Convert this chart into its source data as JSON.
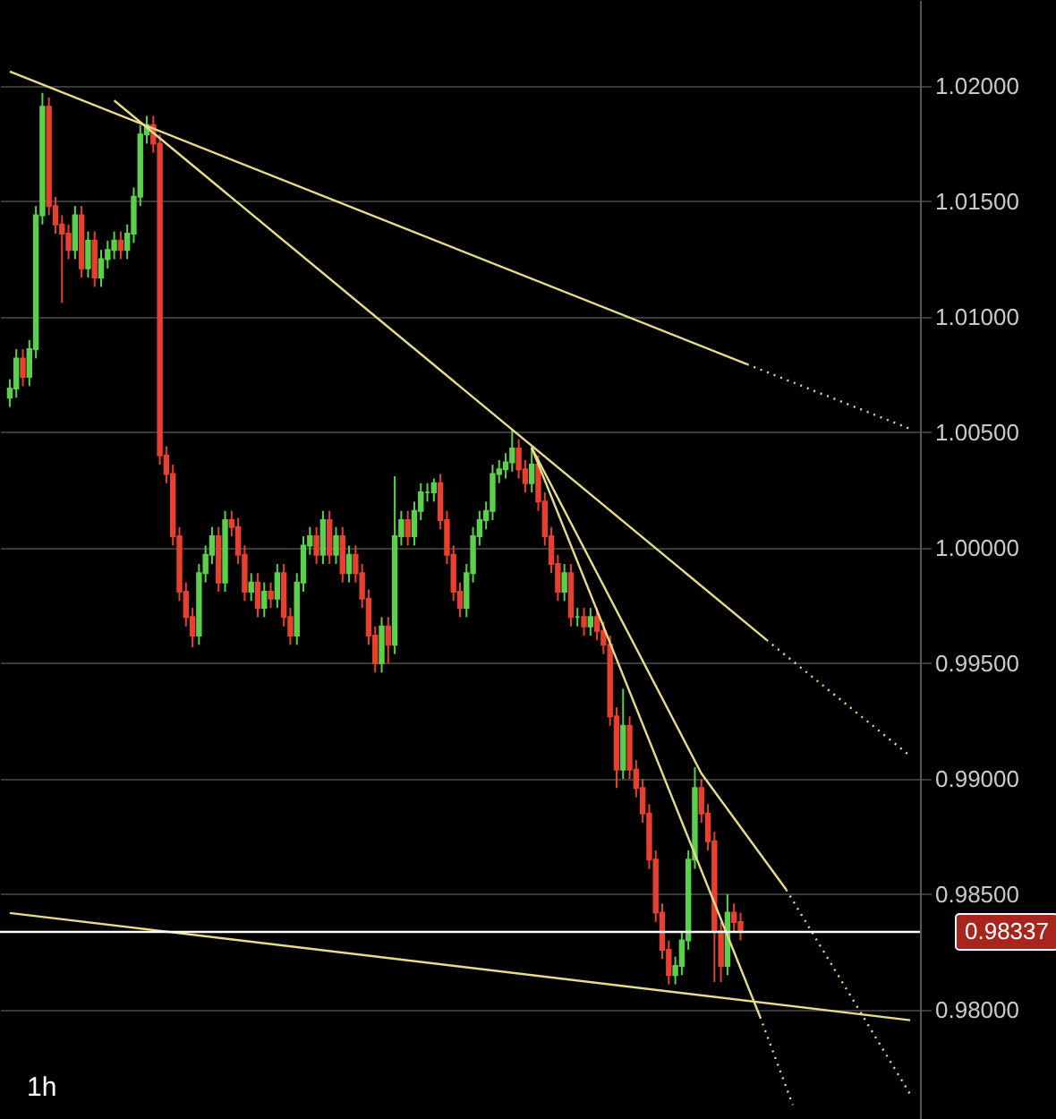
{
  "chart_data": {
    "type": "candlestick",
    "categories": [
      null,
      null,
      null,
      null,
      null,
      null,
      null,
      null,
      null,
      null,
      null,
      null,
      null,
      null,
      null,
      null,
      null,
      null,
      null,
      null,
      null,
      null,
      null,
      null,
      null,
      null,
      null,
      null,
      null,
      null,
      null,
      null,
      null,
      null,
      null,
      null,
      null,
      null,
      null,
      null,
      null,
      null,
      null,
      null,
      null,
      null,
      null,
      null,
      null,
      null,
      null,
      null,
      null,
      null,
      null,
      null,
      null,
      null,
      null,
      null,
      null,
      null,
      null,
      null,
      null,
      null,
      null,
      null,
      null,
      null,
      null,
      null,
      null,
      null,
      null,
      null,
      null,
      null,
      null,
      null,
      null,
      null,
      null,
      null,
      null,
      null,
      null,
      null,
      null,
      null,
      null,
      null,
      null,
      null,
      null,
      null,
      null,
      null,
      null,
      null,
      null,
      null,
      null,
      null,
      null,
      null,
      null,
      null,
      null,
      null,
      null,
      null,
      null,
      null,
      null,
      null,
      null,
      null,
      null,
      null,
      null,
      null,
      null,
      null,
      null,
      null,
      null,
      null,
      null,
      null,
      null,
      null,
      null,
      null,
      null,
      null,
      null,
      null,
      null
    ],
    "ohlc": [
      [
        1.0065,
        1.0073,
        1.0061,
        1.0069
      ],
      [
        1.0069,
        1.0086,
        1.0065,
        1.0082
      ],
      [
        1.0082,
        1.0086,
        1.007,
        1.0074
      ],
      [
        1.0074,
        1.009,
        1.007,
        1.0086
      ],
      [
        1.0086,
        1.0148,
        1.0082,
        1.0144
      ],
      [
        1.0144,
        1.0197,
        1.014,
        1.0191
      ],
      [
        1.0191,
        1.0195,
        1.0144,
        1.0148
      ],
      [
        1.0148,
        1.0152,
        1.0136,
        1.014
      ],
      [
        1.014,
        1.0144,
        1.0106,
        1.0136
      ],
      [
        1.0136,
        1.014,
        1.0125,
        1.0129
      ],
      [
        1.0129,
        1.0148,
        1.0125,
        1.0144
      ],
      [
        1.0144,
        1.0148,
        1.0117,
        1.0121
      ],
      [
        1.0121,
        1.0137,
        1.0117,
        1.0133
      ],
      [
        1.0133,
        1.0137,
        1.0113,
        1.0117
      ],
      [
        1.0117,
        1.0129,
        1.0113,
        1.0125
      ],
      [
        1.0125,
        1.0133,
        1.0121,
        1.0129
      ],
      [
        1.0129,
        1.0137,
        1.0125,
        1.0133
      ],
      [
        1.0133,
        1.0137,
        1.0125,
        1.0129
      ],
      [
        1.0129,
        1.014,
        1.0125,
        1.0136
      ],
      [
        1.0136,
        1.0156,
        1.0132,
        1.0152
      ],
      [
        1.0152,
        1.0183,
        1.0148,
        1.0179
      ],
      [
        1.0179,
        1.0187,
        1.0175,
        1.0183
      ],
      [
        1.0183,
        1.0187,
        1.0171,
        1.0175
      ],
      [
        1.0175,
        1.0179,
        1.0036,
        1.004
      ],
      [
        1.004,
        1.0044,
        1.0028,
        1.0032
      ],
      [
        1.0032,
        1.0036,
        1.0001,
        1.0005
      ],
      [
        1.0005,
        1.0009,
        0.9977,
        0.9981
      ],
      [
        0.9981,
        0.9985,
        0.9966,
        0.997
      ],
      [
        0.997,
        0.9974,
        0.9957,
        0.9962
      ],
      [
        0.9962,
        0.9993,
        0.9958,
        0.9989
      ],
      [
        0.9989,
        1.0001,
        0.9985,
        0.9997
      ],
      [
        0.9997,
        1.0009,
        0.9993,
        1.0005
      ],
      [
        1.0005,
        1.0009,
        0.9981,
        0.9985
      ],
      [
        0.9985,
        1.0016,
        0.9981,
        1.0012
      ],
      [
        1.0012,
        1.0016,
        1.0005,
        1.0009
      ],
      [
        1.0009,
        1.0013,
        0.9993,
        0.9997
      ],
      [
        0.9997,
        1.0001,
        0.9977,
        0.9981
      ],
      [
        0.9981,
        0.9989,
        0.9977,
        0.9985
      ],
      [
        0.9985,
        0.9989,
        0.997,
        0.9974
      ],
      [
        0.9974,
        0.9985,
        0.997,
        0.9981
      ],
      [
        0.9981,
        0.9985,
        0.9974,
        0.9978
      ],
      [
        0.9978,
        0.9993,
        0.9974,
        0.9989
      ],
      [
        0.9989,
        0.9993,
        0.9966,
        0.997
      ],
      [
        0.997,
        0.9974,
        0.9958,
        0.9962
      ],
      [
        0.9962,
        0.9989,
        0.9958,
        0.9985
      ],
      [
        0.9985,
        1.0005,
        0.9981,
        1.0001
      ],
      [
        1.0001,
        1.0009,
        0.9997,
        1.0005
      ],
      [
        1.0005,
        1.0009,
        0.9993,
        0.9997
      ],
      [
        0.9997,
        1.0016,
        0.9993,
        1.0012
      ],
      [
        1.0012,
        1.0016,
        0.9993,
        0.9997
      ],
      [
        0.9997,
        1.0009,
        0.9993,
        1.0005
      ],
      [
        1.0005,
        1.0009,
        0.9985,
        0.9989
      ],
      [
        0.9989,
        1.0001,
        0.9985,
        0.9997
      ],
      [
        0.9997,
        1.0001,
        0.9985,
        0.9989
      ],
      [
        0.9989,
        0.9993,
        0.9974,
        0.9978
      ],
      [
        0.9978,
        0.9982,
        0.9958,
        0.9962
      ],
      [
        0.9962,
        0.9966,
        0.9946,
        0.995
      ],
      [
        0.995,
        0.997,
        0.9946,
        0.9966
      ],
      [
        0.9966,
        0.997,
        0.995,
        0.9958
      ],
      [
        0.9958,
        1.0031,
        0.9954,
        1.0005
      ],
      [
        1.0005,
        1.0016,
        1.0001,
        1.0012
      ],
      [
        1.0012,
        1.0016,
        1.0001,
        1.0005
      ],
      [
        1.0005,
        1.002,
        1.0001,
        1.0016
      ],
      [
        1.0016,
        1.0028,
        1.0012,
        1.0024
      ],
      [
        1.0024,
        1.0028,
        1.002,
        1.0024
      ],
      [
        1.0024,
        1.003,
        1.002,
        1.0028
      ],
      [
        1.0028,
        1.0032,
        1.0008,
        1.0012
      ],
      [
        1.0012,
        1.0016,
        0.9993,
        0.9997
      ],
      [
        0.9997,
        1.0001,
        0.9977,
        0.9981
      ],
      [
        0.9981,
        0.9985,
        0.997,
        0.9974
      ],
      [
        0.9974,
        0.9993,
        0.997,
        0.9989
      ],
      [
        0.9989,
        1.0009,
        0.9985,
        1.0005
      ],
      [
        1.0005,
        1.0016,
        1.0001,
        1.0012
      ],
      [
        1.0012,
        1.002,
        1.0008,
        1.0016
      ],
      [
        1.0016,
        1.0036,
        1.0012,
        1.0032
      ],
      [
        1.0032,
        1.0038,
        1.0028,
        1.0034
      ],
      [
        1.0034,
        1.0041,
        1.003,
        1.0037
      ],
      [
        1.0037,
        1.0051,
        1.0033,
        1.0043
      ],
      [
        1.0043,
        1.0047,
        1.003,
        1.0034
      ],
      [
        1.0034,
        1.0038,
        1.0024,
        1.0028
      ],
      [
        1.0028,
        1.0044,
        1.0024,
        1.0036
      ],
      [
        1.0036,
        1.004,
        1.0016,
        1.002
      ],
      [
        1.002,
        1.0024,
        1.0001,
        1.0005
      ],
      [
        1.0005,
        1.0009,
        0.9989,
        0.9993
      ],
      [
        0.9993,
        0.9997,
        0.9977,
        0.9981
      ],
      [
        0.9981,
        0.9993,
        0.9977,
        0.9989
      ],
      [
        0.9989,
        0.9993,
        0.9966,
        0.997
      ],
      [
        0.997,
        0.9974,
        0.9966,
        0.997
      ],
      [
        0.997,
        0.9974,
        0.9962,
        0.9966
      ],
      [
        0.9966,
        0.9974,
        0.9962,
        0.997
      ],
      [
        0.997,
        0.9974,
        0.996,
        0.9964
      ],
      [
        0.9964,
        0.9968,
        0.9954,
        0.9958
      ],
      [
        0.9958,
        0.9962,
        0.9923,
        0.9927
      ],
      [
        0.9927,
        0.9931,
        0.9896,
        0.9904
      ],
      [
        0.9904,
        0.9939,
        0.99,
        0.9923
      ],
      [
        0.9923,
        0.9927,
        0.99,
        0.9904
      ],
      [
        0.9904,
        0.9908,
        0.9892,
        0.9896
      ],
      [
        0.9896,
        0.99,
        0.9881,
        0.9885
      ],
      [
        0.9885,
        0.9889,
        0.9861,
        0.9865
      ],
      [
        0.9865,
        0.9869,
        0.9838,
        0.9842
      ],
      [
        0.9842,
        0.9846,
        0.9822,
        0.9826
      ],
      [
        0.9826,
        0.983,
        0.9811,
        0.9815
      ],
      [
        0.9815,
        0.9823,
        0.9811,
        0.9819
      ],
      [
        0.9819,
        0.9834,
        0.9815,
        0.983
      ],
      [
        0.983,
        0.9869,
        0.9826,
        0.9865
      ],
      [
        0.9865,
        0.9905,
        0.9861,
        0.9896
      ],
      [
        0.9896,
        0.99,
        0.9881,
        0.9885
      ],
      [
        0.9885,
        0.9889,
        0.9869,
        0.9873
      ],
      [
        0.9873,
        0.9877,
        0.9812,
        0.9834
      ],
      [
        0.9834,
        0.9838,
        0.9812,
        0.9819
      ],
      [
        0.9819,
        0.985,
        0.9815,
        0.9842
      ],
      [
        0.9842,
        0.9846,
        0.9834,
        0.9838
      ],
      [
        0.9838,
        0.9842,
        0.983,
        0.98337
      ],
      null,
      null,
      null,
      null,
      null,
      null,
      null,
      null,
      null,
      null,
      null,
      null,
      null,
      null,
      null,
      null,
      null,
      null,
      null,
      null,
      null,
      null,
      null,
      null,
      null,
      null
    ],
    "colors": [
      "#5ad14a",
      "#5ad14a",
      "#e8402f",
      "#5ad14a",
      "#5ad14a",
      "#5ad14a",
      "#e8402f",
      "#e8402f",
      "#e8402f",
      "#e8402f",
      "#5ad14a",
      "#e8402f",
      "#5ad14a",
      "#e8402f",
      "#5ad14a",
      "#5ad14a",
      "#5ad14a",
      "#e8402f",
      "#5ad14a",
      "#5ad14a",
      "#5ad14a",
      "#5ad14a",
      "#e8402f",
      "#e8402f",
      "#e8402f",
      "#e8402f",
      "#e8402f",
      "#e8402f",
      "#e8402f",
      "#5ad14a",
      "#5ad14a",
      "#5ad14a",
      "#e8402f",
      "#5ad14a",
      "#e8402f",
      "#e8402f",
      "#e8402f",
      "#5ad14a",
      "#e8402f",
      "#5ad14a",
      "#e8402f",
      "#5ad14a",
      "#e8402f",
      "#e8402f",
      "#5ad14a",
      "#5ad14a",
      "#5ad14a",
      "#e8402f",
      "#5ad14a",
      "#e8402f",
      "#5ad14a",
      "#e8402f",
      "#5ad14a",
      "#e8402f",
      "#e8402f",
      "#e8402f",
      "#e8402f",
      "#5ad14a",
      "#e8402f",
      "#5ad14a",
      "#5ad14a",
      "#e8402f",
      "#5ad14a",
      "#5ad14a",
      "#5ad14a",
      "#5ad14a",
      "#e8402f",
      "#e8402f",
      "#e8402f",
      "#e8402f",
      "#5ad14a",
      "#5ad14a",
      "#5ad14a",
      "#5ad14a",
      "#5ad14a",
      "#5ad14a",
      "#5ad14a",
      "#5ad14a",
      "#e8402f",
      "#e8402f",
      "#5ad14a",
      "#e8402f",
      "#e8402f",
      "#e8402f",
      "#e8402f",
      "#5ad14a",
      "#e8402f",
      "#5ad14a",
      "#e8402f",
      "#5ad14a",
      "#e8402f",
      "#e8402f",
      "#e8402f",
      "#e8402f",
      "#5ad14a",
      "#e8402f",
      "#e8402f",
      "#e8402f",
      "#e8402f",
      "#e8402f",
      "#e8402f",
      "#e8402f",
      "#5ad14a",
      "#5ad14a",
      "#5ad14a",
      "#5ad14a",
      "#e8402f",
      "#e8402f",
      "#e8402f",
      "#e8402f",
      "#5ad14a",
      "#e8402f",
      "#e8402f",
      null,
      null,
      null,
      null,
      null,
      null,
      null,
      null,
      null,
      null,
      null,
      null,
      null,
      null,
      null,
      null,
      null,
      null,
      null,
      null,
      null,
      null,
      null,
      null,
      null,
      null
    ],
    "series": [
      {
        "type": "line",
        "values": [
          1.02062,
          null,
          null,
          null,
          null,
          null,
          null,
          null,
          null,
          null,
          null,
          null,
          null,
          null,
          null,
          null,
          null,
          null,
          null,
          null,
          null,
          null,
          null,
          null,
          null,
          null,
          null,
          null,
          null,
          null,
          null,
          null,
          null,
          null,
          null,
          null,
          null,
          null,
          null,
          null,
          null,
          null,
          null,
          null,
          null,
          null,
          null,
          null,
          null,
          null,
          null,
          null,
          null,
          null,
          null,
          null,
          null,
          null,
          null,
          null,
          null,
          null,
          null,
          null,
          null,
          null,
          null,
          null,
          null,
          null,
          null,
          null,
          null,
          null,
          null,
          null,
          null,
          null,
          null,
          null,
          null,
          null,
          null,
          null,
          null,
          null,
          null,
          null,
          null,
          null,
          null,
          null,
          null,
          null,
          null,
          null,
          null,
          null,
          null,
          null,
          null,
          null,
          null,
          null,
          null,
          null,
          null,
          null,
          null,
          null,
          null,
          null,
          null,
          1.00795,
          null,
          null,
          null,
          null,
          null,
          null,
          null,
          null,
          null,
          null,
          null,
          null,
          null,
          null,
          null,
          null,
          null,
          null,
          null,
          null,
          null,
          null,
          null,
          null,
          null
        ],
        "color": "#e6dc8a",
        "line_style": "solid"
      },
      {
        "type": "line",
        "values": [
          null,
          null,
          null,
          null,
          null,
          null,
          null,
          null,
          null,
          null,
          null,
          null,
          null,
          null,
          null,
          null,
          null,
          null,
          null,
          null,
          null,
          null,
          null,
          null,
          null,
          null,
          null,
          null,
          null,
          null,
          null,
          null,
          null,
          null,
          null,
          null,
          null,
          null,
          null,
          null,
          null,
          null,
          null,
          null,
          null,
          null,
          null,
          null,
          null,
          null,
          null,
          null,
          null,
          null,
          null,
          null,
          null,
          null,
          null,
          null,
          null,
          null,
          null,
          null,
          null,
          null,
          null,
          null,
          null,
          null,
          null,
          null,
          null,
          null,
          null,
          null,
          null,
          null,
          null,
          null,
          null,
          null,
          null,
          null,
          null,
          null,
          null,
          null,
          null,
          null,
          null,
          null,
          null,
          null,
          null,
          null,
          null,
          null,
          null,
          null,
          null,
          null,
          null,
          null,
          null,
          null,
          null,
          null,
          null,
          null,
          null,
          null,
          null,
          1.00795,
          null,
          null,
          null,
          null,
          null,
          null,
          null,
          null,
          null,
          null,
          null,
          null,
          null,
          null,
          null,
          null,
          null,
          null,
          null,
          null,
          null,
          null,
          null,
          null,
          1.00515
        ],
        "color": "#e6dc8a",
        "line_style": "dotted"
      },
      {
        "type": "line",
        "values": [
          null,
          null,
          null,
          null,
          null,
          null,
          null,
          null,
          null,
          null,
          null,
          null,
          null,
          null,
          null,
          null,
          1.01937,
          null,
          null,
          null,
          null,
          null,
          null,
          null,
          null,
          null,
          null,
          null,
          null,
          null,
          null,
          null,
          null,
          null,
          null,
          null,
          null,
          null,
          null,
          null,
          null,
          null,
          null,
          null,
          null,
          null,
          null,
          null,
          null,
          null,
          null,
          null,
          null,
          null,
          null,
          null,
          null,
          null,
          null,
          null,
          null,
          null,
          null,
          null,
          null,
          null,
          null,
          null,
          null,
          null,
          null,
          null,
          null,
          null,
          null,
          null,
          null,
          null,
          null,
          null,
          null,
          null,
          null,
          null,
          null,
          null,
          null,
          null,
          null,
          null,
          null,
          null,
          null,
          null,
          null,
          null,
          null,
          null,
          null,
          null,
          null,
          null,
          null,
          null,
          null,
          null,
          null,
          null,
          null,
          null,
          null,
          null,
          null,
          null,
          null,
          null,
          0.99601,
          null,
          null,
          null,
          null,
          null,
          null,
          null,
          null,
          null,
          null,
          null,
          null,
          null,
          null,
          null,
          null,
          null,
          null,
          null,
          null,
          null,
          null
        ],
        "color": "#e6dc8a",
        "line_style": "solid"
      },
      {
        "type": "line",
        "values": [
          null,
          null,
          null,
          null,
          null,
          null,
          null,
          null,
          null,
          null,
          null,
          null,
          null,
          null,
          null,
          null,
          null,
          null,
          null,
          null,
          null,
          null,
          null,
          null,
          null,
          null,
          null,
          null,
          null,
          null,
          null,
          null,
          null,
          null,
          null,
          null,
          null,
          null,
          null,
          null,
          null,
          null,
          null,
          null,
          null,
          null,
          null,
          null,
          null,
          null,
          null,
          null,
          null,
          null,
          null,
          null,
          null,
          null,
          null,
          null,
          null,
          null,
          null,
          null,
          null,
          null,
          null,
          null,
          null,
          null,
          null,
          null,
          null,
          null,
          null,
          null,
          null,
          null,
          null,
          null,
          null,
          null,
          null,
          null,
          null,
          null,
          null,
          null,
          null,
          null,
          null,
          null,
          null,
          null,
          null,
          null,
          null,
          null,
          null,
          null,
          null,
          null,
          null,
          null,
          null,
          null,
          null,
          null,
          null,
          null,
          null,
          null,
          null,
          null,
          null,
          null,
          0.99601,
          null,
          null,
          null,
          null,
          null,
          null,
          null,
          null,
          null,
          null,
          null,
          null,
          null,
          null,
          null,
          null,
          null,
          null,
          null,
          null,
          null,
          0.99099
        ],
        "color": "#e6dc8a",
        "line_style": "dotted"
      },
      {
        "type": "line",
        "values": [
          null,
          null,
          null,
          null,
          null,
          null,
          null,
          null,
          null,
          null,
          null,
          null,
          null,
          null,
          null,
          null,
          null,
          null,
          null,
          null,
          null,
          null,
          null,
          null,
          null,
          null,
          null,
          null,
          null,
          null,
          null,
          null,
          null,
          null,
          null,
          null,
          null,
          null,
          null,
          null,
          null,
          null,
          null,
          null,
          null,
          null,
          null,
          null,
          null,
          null,
          null,
          null,
          null,
          null,
          null,
          null,
          null,
          null,
          null,
          null,
          null,
          null,
          null,
          null,
          null,
          null,
          null,
          null,
          null,
          null,
          null,
          null,
          null,
          null,
          null,
          null,
          null,
          null,
          null,
          null,
          1.00433,
          null,
          null,
          null,
          null,
          null,
          null,
          null,
          null,
          null,
          null,
          null,
          null,
          null,
          null,
          null,
          null,
          null,
          null,
          null,
          null,
          null,
          null,
          null,
          null,
          null,
          null,
          null,
          null,
          null,
          null,
          null,
          null,
          null,
          null,
          0.97969,
          null,
          null,
          null,
          null,
          null,
          null,
          null,
          null,
          null,
          null,
          null,
          null,
          null,
          null,
          null,
          null,
          null,
          null,
          null,
          null,
          null,
          null,
          null
        ],
        "color": "#e6dc8a",
        "line_style": "solid"
      },
      {
        "type": "line",
        "values": [
          null,
          null,
          null,
          null,
          null,
          null,
          null,
          null,
          null,
          null,
          null,
          null,
          null,
          null,
          null,
          null,
          null,
          null,
          null,
          null,
          null,
          null,
          null,
          null,
          null,
          null,
          null,
          null,
          null,
          null,
          null,
          null,
          null,
          null,
          null,
          null,
          null,
          null,
          null,
          null,
          null,
          null,
          null,
          null,
          null,
          null,
          null,
          null,
          null,
          null,
          null,
          null,
          null,
          null,
          null,
          null,
          null,
          null,
          null,
          null,
          null,
          null,
          null,
          null,
          null,
          null,
          null,
          null,
          null,
          null,
          null,
          null,
          null,
          null,
          null,
          null,
          null,
          null,
          null,
          null,
          null,
          null,
          null,
          null,
          null,
          null,
          null,
          null,
          null,
          null,
          null,
          null,
          null,
          null,
          null,
          null,
          null,
          null,
          null,
          null,
          null,
          null,
          null,
          null,
          null,
          null,
          null,
          null,
          null,
          null,
          null,
          null,
          null,
          null,
          null,
          0.97969,
          null,
          null,
          null,
          null,
          0.97588,
          null,
          null,
          null,
          null,
          null,
          null,
          null,
          null,
          null,
          null,
          null,
          null,
          null,
          null,
          null,
          null,
          null,
          null
        ],
        "color": "#e6dc8a",
        "line_style": "dotted"
      },
      {
        "type": "line",
        "values": [
          null,
          null,
          null,
          null,
          null,
          null,
          null,
          null,
          null,
          null,
          null,
          null,
          null,
          null,
          null,
          null,
          null,
          null,
          null,
          null,
          null,
          null,
          null,
          null,
          null,
          null,
          null,
          null,
          null,
          null,
          null,
          null,
          null,
          null,
          null,
          null,
          null,
          null,
          null,
          null,
          null,
          null,
          null,
          null,
          null,
          null,
          null,
          null,
          null,
          null,
          null,
          null,
          null,
          null,
          null,
          null,
          null,
          null,
          null,
          null,
          null,
          null,
          null,
          null,
          null,
          null,
          null,
          null,
          null,
          null,
          null,
          null,
          null,
          null,
          null,
          null,
          null,
          null,
          null,
          null,
          1.00433,
          null,
          null,
          null,
          null,
          null,
          null,
          null,
          null,
          null,
          null,
          null,
          null,
          null,
          null,
          null,
          null,
          null,
          null,
          null,
          null,
          null,
          null,
          null,
          null,
          null,
          0.99023,
          null,
          null,
          null,
          null,
          null,
          null,
          null,
          null,
          null,
          null,
          null,
          null,
          0.9852,
          null,
          null,
          null,
          null,
          null,
          null,
          null,
          null,
          null,
          null,
          null,
          null,
          null,
          null,
          null,
          null,
          null,
          null,
          null
        ],
        "color": "#e6dc8a",
        "line_style": "solid"
      },
      {
        "type": "line",
        "values": [
          null,
          null,
          null,
          null,
          null,
          null,
          null,
          null,
          null,
          null,
          null,
          null,
          null,
          null,
          null,
          null,
          null,
          null,
          null,
          null,
          null,
          null,
          null,
          null,
          null,
          null,
          null,
          null,
          null,
          null,
          null,
          null,
          null,
          null,
          null,
          null,
          null,
          null,
          null,
          null,
          null,
          null,
          null,
          null,
          null,
          null,
          null,
          null,
          null,
          null,
          null,
          null,
          null,
          null,
          null,
          null,
          null,
          null,
          null,
          null,
          null,
          null,
          null,
          null,
          null,
          null,
          null,
          null,
          null,
          null,
          null,
          null,
          null,
          null,
          null,
          null,
          null,
          null,
          null,
          null,
          null,
          null,
          null,
          null,
          null,
          null,
          null,
          null,
          null,
          null,
          null,
          null,
          null,
          null,
          null,
          null,
          null,
          null,
          null,
          null,
          null,
          null,
          null,
          null,
          null,
          null,
          null,
          null,
          null,
          null,
          null,
          null,
          null,
          null,
          null,
          null,
          null,
          null,
          null,
          0.9852,
          null,
          null,
          null,
          null,
          null,
          null,
          null,
          null,
          null,
          null,
          null,
          null,
          null,
          null,
          null,
          null,
          null,
          null,
          0.97634
        ],
        "color": "#e6dc8a",
        "line_style": "dotted"
      },
      {
        "type": "line",
        "values": [
          0.98419,
          null,
          null,
          null,
          null,
          null,
          null,
          null,
          null,
          null,
          null,
          null,
          null,
          null,
          null,
          null,
          null,
          null,
          null,
          null,
          null,
          null,
          null,
          null,
          null,
          null,
          null,
          null,
          null,
          null,
          null,
          null,
          null,
          null,
          null,
          null,
          null,
          null,
          null,
          null,
          null,
          null,
          null,
          null,
          null,
          null,
          null,
          null,
          null,
          null,
          null,
          null,
          null,
          null,
          null,
          null,
          null,
          null,
          null,
          null,
          null,
          null,
          null,
          null,
          null,
          null,
          null,
          null,
          null,
          null,
          null,
          null,
          null,
          null,
          null,
          null,
          null,
          null,
          null,
          null,
          null,
          null,
          null,
          null,
          null,
          null,
          null,
          null,
          null,
          null,
          null,
          null,
          null,
          null,
          null,
          null,
          null,
          null,
          null,
          null,
          null,
          null,
          null,
          null,
          null,
          null,
          null,
          null,
          null,
          null,
          null,
          null,
          null,
          null,
          null,
          null,
          null,
          null,
          null,
          null,
          null,
          null,
          null,
          null,
          null,
          null,
          null,
          null,
          null,
          null,
          null,
          null,
          null,
          null,
          null,
          null,
          null,
          null,
          0.97955
        ],
        "color": "#e6dc8a",
        "line_style": "solid"
      }
    ],
    "ref_lines": [
      {
        "axis": "y",
        "value": 0.98337,
        "label": "0.98337",
        "color": "#ffffff"
      }
    ],
    "ylim": [
      0.97527,
      1.02372
    ],
    "yticks": [
      {
        "value": 0.98,
        "label": "0.98000"
      },
      {
        "value": 0.985,
        "label": "0.98500"
      },
      {
        "value": 0.99,
        "label": "0.99000"
      },
      {
        "value": 0.995,
        "label": "0.99500"
      },
      {
        "value": 1.0,
        "label": "1.00000"
      },
      {
        "value": 1.005,
        "label": "1.00500"
      },
      {
        "value": 1.01,
        "label": "1.01000"
      },
      {
        "value": 1.015,
        "label": "1.01500"
      },
      {
        "value": 1.02,
        "label": "1.02000"
      }
    ],
    "tick_labels": "y",
    "grid": "y",
    "annotations": [
      "1h"
    ]
  }
}
